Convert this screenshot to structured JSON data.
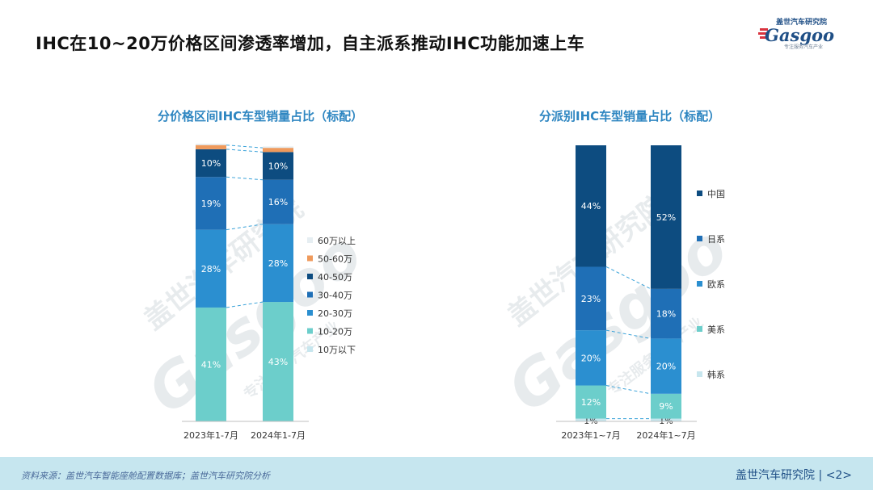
{
  "page_title": "IHC在10~20万价格区间渗透率增加，自主派系推动IHC功能加速上车",
  "logo": {
    "top_text": "盖世汽车研究院",
    "wordmark": "Gasgoo",
    "tagline": "专注服务汽车产业"
  },
  "watermark": {
    "cn": "盖世汽车研究院",
    "en": "Gasgoo",
    "slogan": "专注服务汽车产业"
  },
  "colors": {
    "navy": "#0d4c80",
    "blue": "#1f6fb6",
    "mid": "#2b8fd0",
    "sky": "#3aa2d9",
    "teal": "#6ccecb",
    "pale": "#c7e6ee",
    "orange": "#ef9a5c",
    "title_blue": "#2e86c1"
  },
  "chart_data": [
    {
      "type": "bar",
      "stacked": true,
      "title": "分价格区间IHC车型销量占比（标配）",
      "categories": [
        "2023年1-7月",
        "2024年1-7月"
      ],
      "series": [
        {
          "name": "10万以下",
          "values": [
            0,
            0
          ],
          "color": "#c7e6ee"
        },
        {
          "name": "10-20万",
          "values": [
            41,
            43
          ],
          "color": "#6ccecb",
          "labels": [
            "41%",
            "43%"
          ]
        },
        {
          "name": "20-30万",
          "values": [
            28,
            28
          ],
          "color": "#2b8fd0",
          "labels": [
            "28%",
            "28%"
          ]
        },
        {
          "name": "30-40万",
          "values": [
            19,
            16
          ],
          "color": "#1f6fb6",
          "labels": [
            "19%",
            "16%"
          ]
        },
        {
          "name": "40-50万",
          "values": [
            10,
            10
          ],
          "color": "#0d4c80",
          "labels": [
            "10%",
            "10%"
          ]
        },
        {
          "name": "50-60万",
          "values": [
            1.5,
            1.5
          ],
          "color": "#ef9a5c"
        },
        {
          "name": "60万以上",
          "values": [
            0.5,
            0.5
          ],
          "color": "#e6eef2"
        }
      ],
      "legend_position": "right",
      "connector_lines": true
    },
    {
      "type": "bar",
      "stacked": true,
      "title": "分派别IHC车型销量占比（标配）",
      "categories": [
        "2023年1~7月",
        "2024年1~7月"
      ],
      "series": [
        {
          "name": "韩系",
          "values": [
            1,
            1
          ],
          "color": "#c7e6ee",
          "labels": [
            "1%",
            "1%"
          ]
        },
        {
          "name": "美系",
          "values": [
            12,
            9
          ],
          "color": "#6ccecb",
          "labels": [
            "12%",
            "9%"
          ]
        },
        {
          "name": "欧系",
          "values": [
            20,
            20
          ],
          "color": "#2b8fd0",
          "labels": [
            "20%",
            "20%"
          ]
        },
        {
          "name": "日系",
          "values": [
            23,
            18
          ],
          "color": "#1f6fb6",
          "labels": [
            "23%",
            "18%"
          ]
        },
        {
          "name": "中国",
          "values": [
            44,
            52
          ],
          "color": "#0d4c80",
          "labels": [
            "44%",
            "52%"
          ]
        }
      ],
      "legend_position": "right",
      "connector_lines": true
    }
  ],
  "footer": {
    "source": "资料来源：盖世汽车智能座舱配置数据库；盖世汽车研究院分析",
    "org": "盖世汽车研究院",
    "page": "<2>"
  }
}
